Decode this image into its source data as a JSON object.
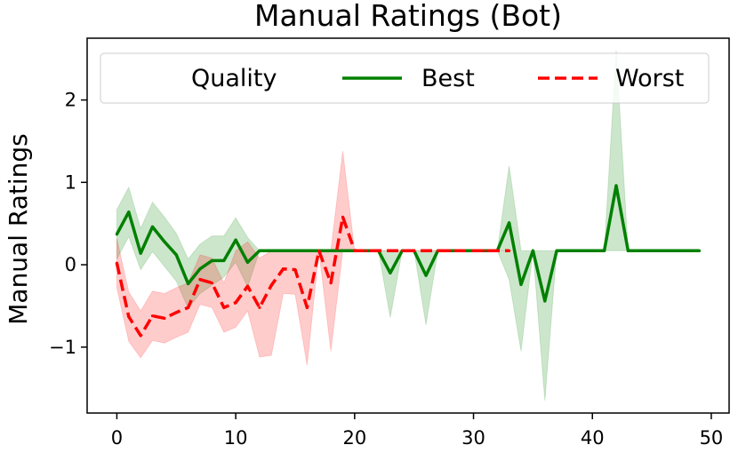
{
  "chart_data": {
    "type": "line",
    "title": "Manual Ratings (Bot)",
    "xlabel": "",
    "ylabel": "Manual Ratings",
    "xlim": [
      -2.5,
      51.5
    ],
    "ylim": [
      -1.8,
      2.75
    ],
    "xticks": [
      0,
      10,
      20,
      30,
      40,
      50
    ],
    "yticks": [
      -1,
      0,
      1,
      2
    ],
    "ytick_labels": [
      "−1",
      "0",
      "1",
      "2"
    ],
    "grid": false,
    "legend": {
      "title": "Quality",
      "placement": "top",
      "entries": [
        "Best",
        "Worst"
      ]
    },
    "series": [
      {
        "name": "Best",
        "color": "#008000",
        "style": "solid",
        "x": [
          0,
          1,
          2,
          3,
          4,
          5,
          6,
          7,
          8,
          9,
          10,
          11,
          12,
          13,
          14,
          15,
          16,
          17,
          18,
          19,
          20,
          21,
          22,
          23,
          24,
          25,
          26,
          27,
          28,
          29,
          30,
          31,
          32,
          33,
          34,
          35,
          36,
          37,
          38,
          39,
          40,
          41,
          42,
          43,
          44,
          45,
          46,
          47,
          48,
          49
        ],
        "values": [
          0.37,
          0.64,
          0.14,
          0.46,
          0.28,
          0.12,
          -0.23,
          -0.05,
          0.05,
          0.05,
          0.3,
          0.03,
          0.17,
          0.17,
          0.17,
          0.17,
          0.17,
          0.17,
          0.17,
          0.17,
          0.17,
          0.17,
          0.17,
          -0.1,
          0.17,
          0.17,
          -0.13,
          0.17,
          0.17,
          0.17,
          0.17,
          0.17,
          0.17,
          0.51,
          -0.24,
          0.17,
          -0.44,
          0.17,
          0.17,
          0.17,
          0.17,
          0.17,
          0.96,
          0.17,
          0.17,
          0.17,
          0.17,
          0.17,
          0.17,
          0.17
        ],
        "band_low": [
          0.07,
          0.34,
          -0.06,
          0.16,
          -0.02,
          -0.2,
          -0.53,
          -0.35,
          -0.25,
          -0.15,
          0.03,
          -0.27,
          0.17,
          0.17,
          0.17,
          0.17,
          0.17,
          0.17,
          0.17,
          0.17,
          0.17,
          0.17,
          0.17,
          -0.64,
          0.17,
          0.17,
          -0.73,
          0.17,
          0.17,
          0.17,
          0.17,
          0.17,
          0.17,
          -0.18,
          -1.05,
          0.17,
          -1.65,
          0.17,
          0.17,
          0.17,
          0.17,
          0.17,
          0.17,
          0.17,
          0.17,
          0.17,
          0.17,
          0.17,
          0.17,
          0.17
        ],
        "band_high": [
          0.67,
          0.94,
          0.44,
          0.76,
          0.58,
          0.38,
          0.07,
          0.25,
          0.35,
          0.35,
          0.57,
          0.33,
          0.17,
          0.17,
          0.17,
          0.17,
          0.17,
          0.17,
          0.17,
          0.17,
          0.17,
          0.17,
          0.17,
          0.17,
          0.17,
          0.17,
          0.17,
          0.17,
          0.17,
          0.17,
          0.17,
          0.17,
          0.17,
          1.2,
          0.17,
          0.17,
          0.17,
          0.17,
          0.17,
          0.17,
          0.17,
          0.17,
          2.6,
          0.17,
          0.17,
          0.17,
          0.17,
          0.17,
          0.17,
          0.17
        ]
      },
      {
        "name": "Worst",
        "color": "#ff0000",
        "style": "dashed",
        "x": [
          0,
          1,
          2,
          3,
          4,
          5,
          6,
          7,
          8,
          9,
          10,
          11,
          12,
          13,
          14,
          15,
          16,
          17,
          18,
          19,
          20,
          21,
          22,
          23,
          24,
          25,
          26,
          27,
          28,
          29,
          30,
          31,
          32,
          33
        ],
        "values": [
          0.02,
          -0.63,
          -0.86,
          -0.62,
          -0.65,
          -0.58,
          -0.52,
          -0.18,
          -0.22,
          -0.52,
          -0.46,
          -0.26,
          -0.52,
          -0.25,
          -0.05,
          -0.06,
          -0.52,
          0.17,
          -0.22,
          0.58,
          0.17,
          0.17,
          0.17,
          0.17,
          0.17,
          0.17,
          0.17,
          0.17,
          0.17,
          0.17,
          0.17,
          0.17,
          0.17,
          0.17
        ],
        "band_low": [
          -0.28,
          -0.93,
          -1.13,
          -0.92,
          -0.95,
          -0.88,
          -0.82,
          -0.48,
          -0.52,
          -0.82,
          -0.76,
          -0.56,
          -1.12,
          -1.1,
          -0.35,
          -0.36,
          -1.22,
          0.17,
          -1.05,
          0.17,
          0.17,
          0.17,
          0.17,
          0.17,
          0.17,
          0.17,
          0.17,
          0.17,
          0.17,
          0.17,
          0.17,
          0.17,
          0.17,
          0.17
        ],
        "band_high": [
          0.32,
          -0.33,
          -0.56,
          -0.32,
          -0.35,
          -0.28,
          -0.22,
          0.12,
          0.08,
          -0.22,
          0.17,
          0.28,
          0.08,
          0.17,
          0.17,
          0.17,
          0.17,
          0.17,
          0.17,
          1.38,
          0.17,
          0.17,
          0.17,
          0.17,
          0.17,
          0.17,
          0.17,
          0.17,
          0.17,
          0.17,
          0.17,
          0.17,
          0.17,
          0.17
        ]
      }
    ]
  }
}
